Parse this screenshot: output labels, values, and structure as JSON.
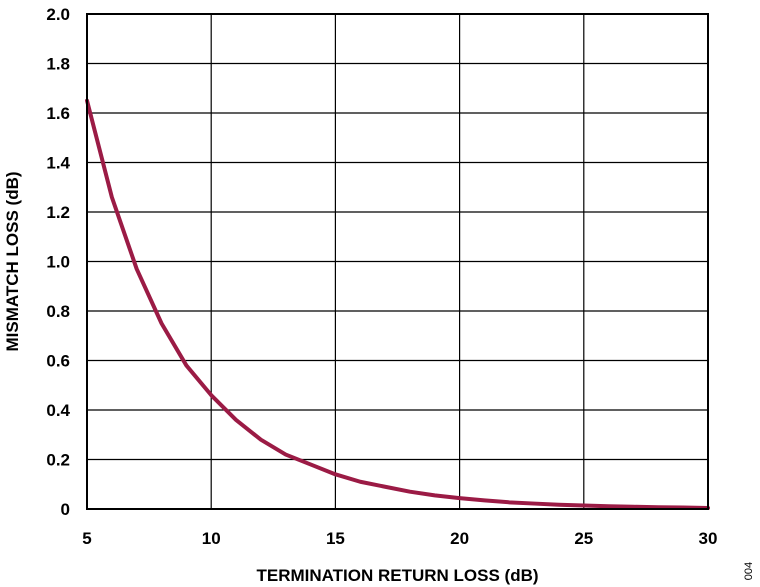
{
  "chart_data": {
    "type": "line",
    "title": "",
    "xlabel": "TERMINATION RETURN LOSS (dB)",
    "ylabel": "MISMATCH LOSS (dB)",
    "xlim": [
      5,
      30
    ],
    "ylim": [
      0,
      2.0
    ],
    "x_ticks": [
      5,
      10,
      15,
      20,
      25,
      30
    ],
    "x_tick_labels": [
      "5",
      "10",
      "15",
      "20",
      "25",
      "30"
    ],
    "y_ticks": [
      0,
      0.2,
      0.4,
      0.6,
      0.8,
      1.0,
      1.2,
      1.4,
      1.6,
      1.8,
      2.0
    ],
    "y_tick_labels": [
      "0",
      "0.2",
      "0.4",
      "0.6",
      "0.8",
      "1.0",
      "1.2",
      "1.4",
      "1.6",
      "1.8",
      "2.0"
    ],
    "grid": true,
    "legend": "none",
    "series": [
      {
        "color": "#9b1b45",
        "x": [
          5,
          6,
          7,
          8,
          9,
          10,
          11,
          12,
          13,
          14,
          15,
          16,
          17,
          18,
          19,
          20,
          21,
          22,
          23,
          24,
          25,
          26,
          27,
          28,
          29,
          30
        ],
        "y": [
          1.65,
          1.26,
          0.97,
          0.75,
          0.58,
          0.46,
          0.36,
          0.28,
          0.22,
          0.18,
          0.14,
          0.11,
          0.09,
          0.07,
          0.055,
          0.044,
          0.035,
          0.027,
          0.022,
          0.017,
          0.014,
          0.011,
          0.009,
          0.007,
          0.006,
          0.004
        ]
      }
    ]
  },
  "figure_code": "004"
}
